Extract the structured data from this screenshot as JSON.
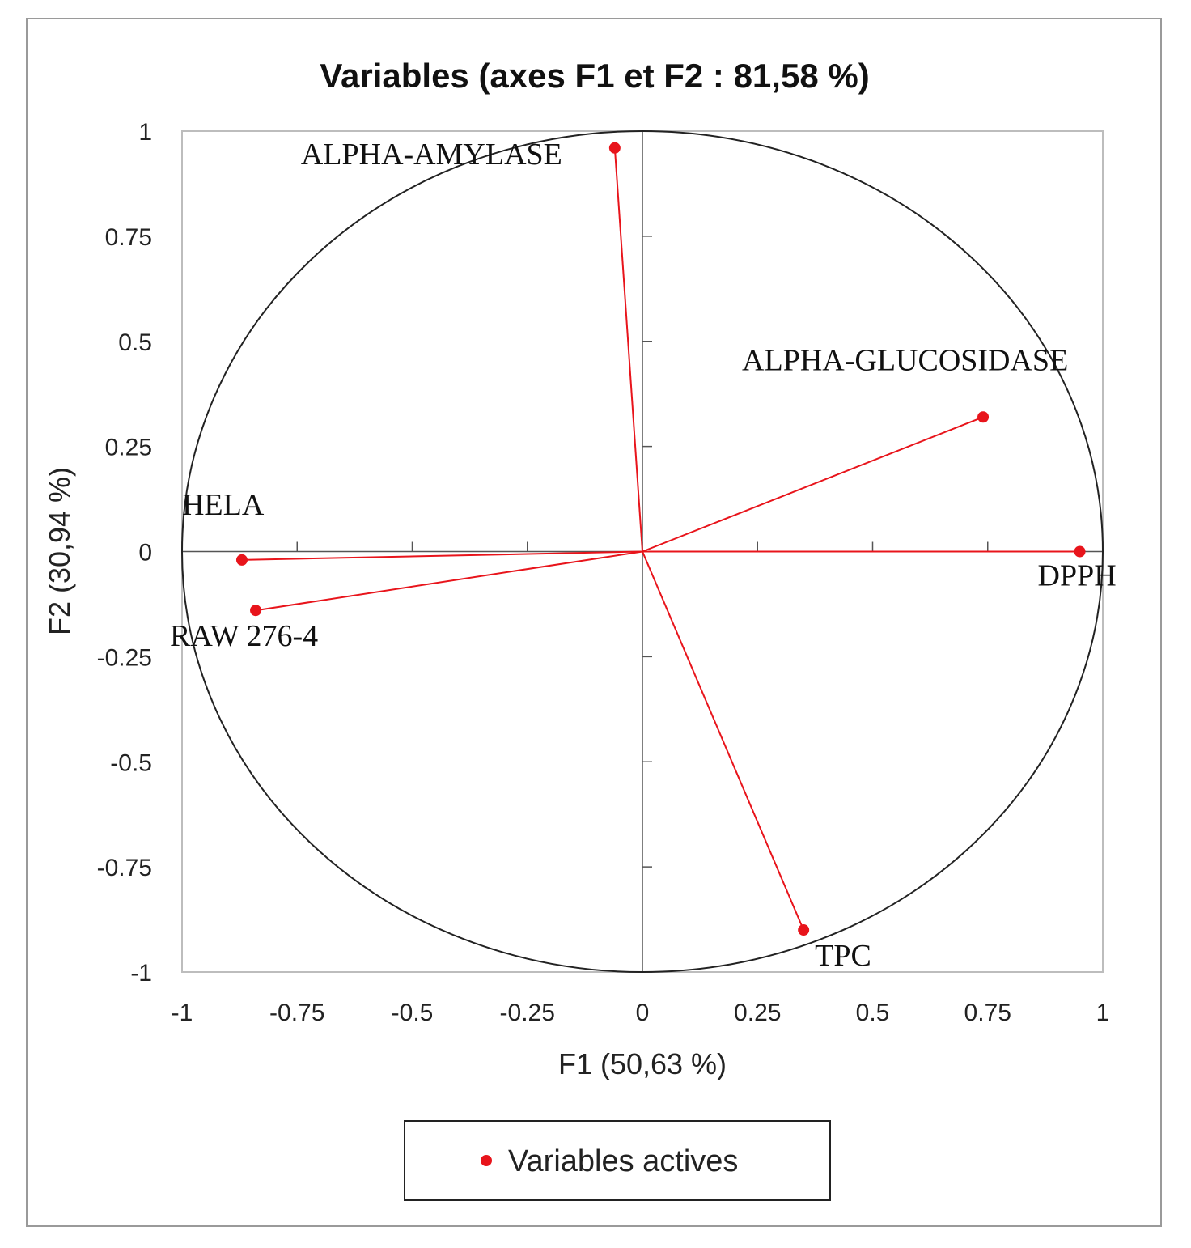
{
  "chart_data": {
    "type": "scatter",
    "title": "Variables (axes F1 et F2 : 81,58 %)",
    "xlabel": "F1 (50,63 %)",
    "ylabel": "F2 (30,94 %)",
    "xlim": [
      -1,
      1
    ],
    "ylim": [
      -1,
      1
    ],
    "x_ticks": [
      -1,
      -0.75,
      -0.5,
      -0.25,
      0,
      0.25,
      0.5,
      0.75,
      1
    ],
    "y_ticks": [
      -1,
      -0.75,
      -0.5,
      -0.25,
      0,
      0.25,
      0.5,
      0.75,
      1
    ],
    "x_tick_labels": [
      "-1",
      "-0.75",
      "-0.5",
      "-0.25",
      "0",
      "0.25",
      "0.5",
      "0.75",
      "1"
    ],
    "y_tick_labels": [
      "-1",
      "-0.75",
      "-0.5",
      "-0.25",
      "0",
      "0.25",
      "0.5",
      "0.75",
      "1"
    ],
    "grid": false,
    "correlation_circle": true,
    "legend": {
      "position": "bottom",
      "entries": [
        "Variables actives"
      ]
    },
    "series": [
      {
        "name": "Variables actives",
        "color": "#e8141b",
        "points": [
          {
            "label": "ALPHA-AMYLASE",
            "x": -0.06,
            "y": 0.96
          },
          {
            "label": "ALPHA-GLUCOSIDASE",
            "x": 0.74,
            "y": 0.32
          },
          {
            "label": "HELA",
            "x": -0.87,
            "y": -0.02
          },
          {
            "label": "RAW 276-4",
            "x": -0.84,
            "y": -0.14
          },
          {
            "label": "DPPH",
            "x": 0.95,
            "y": 0.0
          },
          {
            "label": "TPC",
            "x": 0.35,
            "y": -0.9
          }
        ]
      }
    ]
  }
}
